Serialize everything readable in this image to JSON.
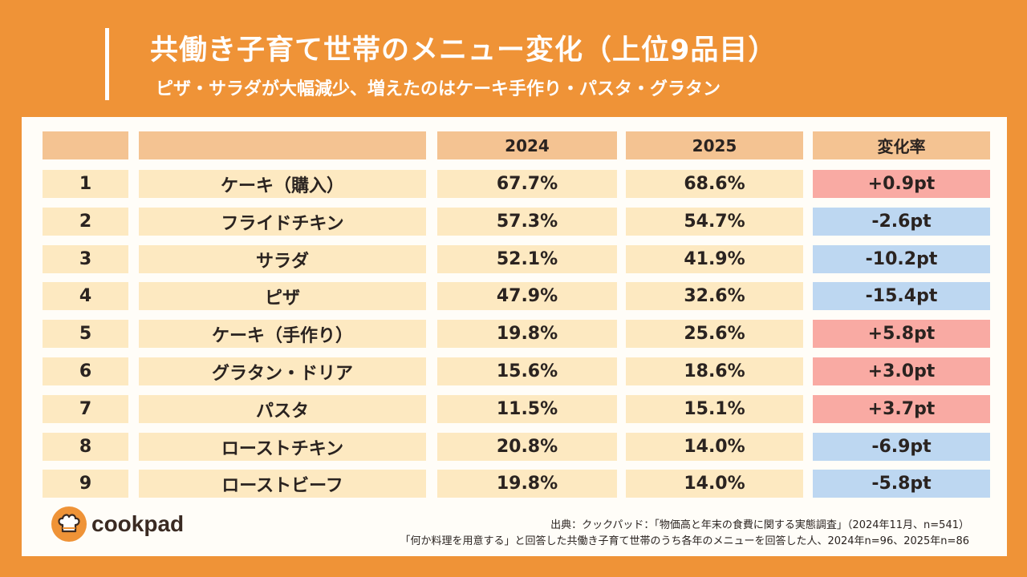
{
  "header": {
    "title": "共働き子育て世帯のメニュー変化（上位9品目）",
    "subtitle": "ピザ・サラダが大幅減少、増えたのはケーキ手作り・パスタ・グラタン"
  },
  "chart_data": {
    "type": "table",
    "title": "共働き子育て世帯のメニュー変化（上位9品目）",
    "columns": [
      "",
      "",
      "2024",
      "2025",
      "変化率"
    ],
    "rows": [
      {
        "rank": "1",
        "item": "ケーキ（購入）",
        "y2024": "67.7%",
        "y2025": "68.6%",
        "change": "+0.9pt",
        "direction": "up"
      },
      {
        "rank": "2",
        "item": "フライドチキン",
        "y2024": "57.3%",
        "y2025": "54.7%",
        "change": "-2.6pt",
        "direction": "down"
      },
      {
        "rank": "3",
        "item": "サラダ",
        "y2024": "52.1%",
        "y2025": "41.9%",
        "change": "-10.2pt",
        "direction": "down"
      },
      {
        "rank": "4",
        "item": "ピザ",
        "y2024": "47.9%",
        "y2025": "32.6%",
        "change": "-15.4pt",
        "direction": "down"
      },
      {
        "rank": "5",
        "item": "ケーキ（手作り）",
        "y2024": "19.8%",
        "y2025": "25.6%",
        "change": "+5.8pt",
        "direction": "up"
      },
      {
        "rank": "6",
        "item": "グラタン・ドリア",
        "y2024": "15.6%",
        "y2025": "18.6%",
        "change": "+3.0pt",
        "direction": "up"
      },
      {
        "rank": "7",
        "item": "パスタ",
        "y2024": "11.5%",
        "y2025": "15.1%",
        "change": "+3.7pt",
        "direction": "up"
      },
      {
        "rank": "8",
        "item": "ローストチキン",
        "y2024": "20.8%",
        "y2025": "14.0%",
        "change": "-6.9pt",
        "direction": "down"
      },
      {
        "rank": "9",
        "item": "ローストビーフ",
        "y2024": "19.8%",
        "y2025": "14.0%",
        "change": "-5.8pt",
        "direction": "down"
      }
    ]
  },
  "colors": {
    "background": "#ef9337",
    "header_cell": "#f4c392",
    "body_cell": "#fde9c1",
    "increase": "#f9aaa3",
    "decrease": "#bdd7f1"
  },
  "footer": {
    "logo_text": "cookpad",
    "source_line1": "出典：クックパッド：「物価高と年末の食費に関する実態調査」（2024年11月、n=541）",
    "source_line2": "「何か料理を用意する」と回答した共働き子育て世帯のうち各年のメニューを回答した人、2024年n=96、2025年n=86"
  }
}
